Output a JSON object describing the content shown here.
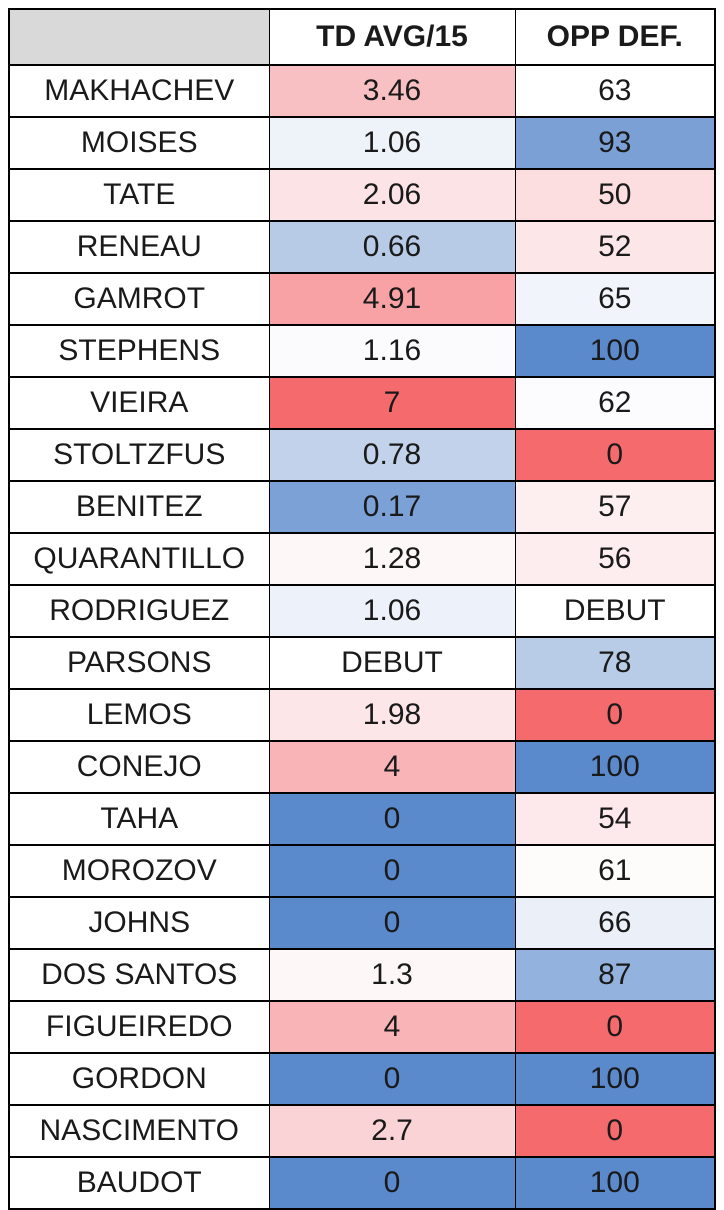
{
  "header": {
    "corner": "",
    "col_td": "TD AVG/15",
    "col_opp": "OPP DEF."
  },
  "rows": [
    {
      "name": "MAKHACHEV",
      "td": "3.46",
      "td_color": "#f9c0c3",
      "opp": "63",
      "opp_color": "#ffffff"
    },
    {
      "name": "MOISES",
      "td": "1.06",
      "td_color": "#eef2f9",
      "opp": "93",
      "opp_color": "#7ba0d6"
    },
    {
      "name": "TATE",
      "td": "2.06",
      "td_color": "#fce4e6",
      "opp": "50",
      "opp_color": "#fcdde0"
    },
    {
      "name": "RENEAU",
      "td": "0.66",
      "td_color": "#b7cbe7",
      "opp": "52",
      "opp_color": "#fde6e8"
    },
    {
      "name": "GAMROT",
      "td": "4.91",
      "td_color": "#f8a2a5",
      "opp": "65",
      "opp_color": "#f1f4fa"
    },
    {
      "name": "STEPHENS",
      "td": "1.16",
      "td_color": "#fbfbfd",
      "opp": "100",
      "opp_color": "#5a89cc"
    },
    {
      "name": "VIEIRA",
      "td": "7",
      "td_color": "#f56a6c",
      "opp": "62",
      "opp_color": "#fcfcfe"
    },
    {
      "name": "STOLTZFUS",
      "td": "0.78",
      "td_color": "#c1d2ea",
      "opp": "0",
      "opp_color": "#f56a6c"
    },
    {
      "name": "BENITEZ",
      "td": "0.17",
      "td_color": "#7ca1d6",
      "opp": "57",
      "opp_color": "#fdeff0"
    },
    {
      "name": "QUARANTILLO",
      "td": "1.28",
      "td_color": "#fef7f8",
      "opp": "56",
      "opp_color": "#fdedee"
    },
    {
      "name": "RODRIGUEZ",
      "td": "1.06",
      "td_color": "#edf1f9",
      "opp": "DEBUT",
      "opp_color": "#ffffff"
    },
    {
      "name": "PARSONS",
      "td": "DEBUT",
      "td_color": "#ffffff",
      "opp": "78",
      "opp_color": "#b8cbe7"
    },
    {
      "name": "LEMOS",
      "td": "1.98",
      "td_color": "#fce6e8",
      "opp": "0",
      "opp_color": "#f56a6c"
    },
    {
      "name": "CONEJO",
      "td": "4",
      "td_color": "#f9b4b7",
      "opp": "100",
      "opp_color": "#5a89cc"
    },
    {
      "name": "TAHA",
      "td": "0",
      "td_color": "#5a89cc",
      "opp": "54",
      "opp_color": "#fde9eb"
    },
    {
      "name": "MOROZOV",
      "td": "0",
      "td_color": "#5a89cc",
      "opp": "61",
      "opp_color": "#fefbfb"
    },
    {
      "name": "JOHNS",
      "td": "0",
      "td_color": "#5a89cc",
      "opp": "66",
      "opp_color": "#ebf0f8"
    },
    {
      "name": "DOS SANTOS",
      "td": "1.3",
      "td_color": "#fdf7f8",
      "opp": "87",
      "opp_color": "#93b2de"
    },
    {
      "name": "FIGUEIREDO",
      "td": "4",
      "td_color": "#f9b4b7",
      "opp": "0",
      "opp_color": "#f56a6c"
    },
    {
      "name": "GORDON",
      "td": "0",
      "td_color": "#5a89cc",
      "opp": "100",
      "opp_color": "#5a89cc"
    },
    {
      "name": "NASCIMENTO",
      "td": "2.7",
      "td_color": "#fad3d6",
      "opp": "0",
      "opp_color": "#f56a6c"
    },
    {
      "name": "BAUDOT",
      "td": "0",
      "td_color": "#5a89cc",
      "opp": "100",
      "opp_color": "#5a89cc"
    }
  ]
}
